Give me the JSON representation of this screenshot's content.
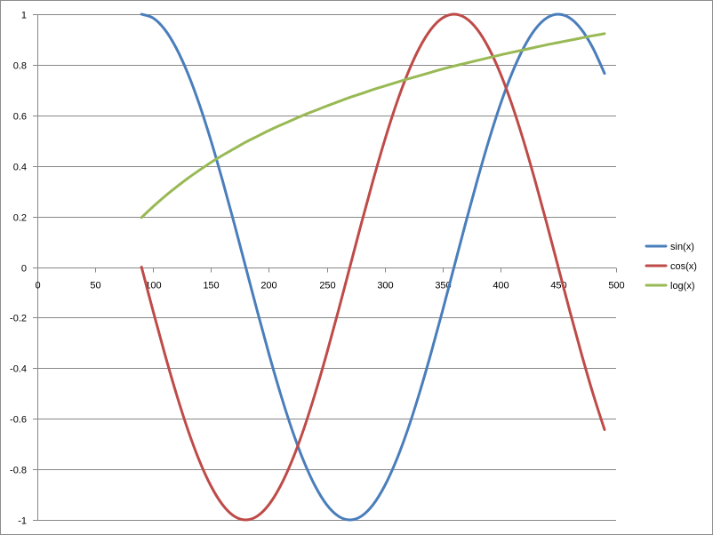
{
  "chart_data": {
    "type": "line",
    "xlim": [
      0,
      500
    ],
    "ylim": [
      -1,
      1
    ],
    "x_ticks": [
      0,
      50,
      100,
      150,
      200,
      250,
      300,
      350,
      400,
      450,
      500
    ],
    "y_ticks": [
      1,
      0.8,
      0.6,
      0.4,
      0.2,
      0,
      -0.2,
      -0.4,
      -0.6,
      -0.8,
      -1
    ],
    "y_tick_labels": [
      "1",
      "0.8",
      "0.6",
      "0.4",
      "0.2",
      "0",
      "-0.2",
      "-0.4",
      "-0.6",
      "-0.8",
      "-1"
    ],
    "x_tick_labels": [
      "0",
      "50",
      "100",
      "150",
      "200",
      "250",
      "300",
      "350",
      "400",
      "450",
      "500"
    ],
    "grid": "horizontal",
    "legend_position": "right",
    "series": [
      {
        "name": "sin(x)",
        "color": "#4a7ebb",
        "x": [
          90,
          100,
          110,
          120,
          130,
          140,
          150,
          160,
          170,
          180,
          190,
          200,
          210,
          220,
          230,
          240,
          250,
          260,
          270,
          280,
          290,
          300,
          310,
          320,
          330,
          340,
          350,
          360,
          370,
          380,
          390,
          400,
          410,
          420,
          430,
          440,
          450,
          460,
          470,
          480,
          490
        ],
        "y": [
          1,
          0.985,
          0.94,
          0.866,
          0.766,
          0.643,
          0.5,
          0.342,
          0.174,
          0,
          -0.174,
          -0.342,
          -0.5,
          -0.643,
          -0.766,
          -0.866,
          -0.94,
          -0.985,
          -1,
          -0.985,
          -0.94,
          -0.866,
          -0.766,
          -0.643,
          -0.5,
          -0.342,
          -0.174,
          0,
          0.174,
          0.342,
          0.5,
          0.643,
          0.766,
          0.866,
          0.94,
          0.985,
          1,
          0.985,
          0.94,
          0.866,
          0.766
        ]
      },
      {
        "name": "cos(x)",
        "color": "#be4b48",
        "x": [
          90,
          100,
          110,
          120,
          130,
          140,
          150,
          160,
          170,
          180,
          190,
          200,
          210,
          220,
          230,
          240,
          250,
          260,
          270,
          280,
          290,
          300,
          310,
          320,
          330,
          340,
          350,
          360,
          370,
          380,
          390,
          400,
          410,
          420,
          430,
          440,
          450,
          460,
          470,
          480,
          490
        ],
        "y": [
          0,
          -0.174,
          -0.342,
          -0.5,
          -0.643,
          -0.766,
          -0.866,
          -0.94,
          -0.985,
          -1,
          -0.985,
          -0.94,
          -0.866,
          -0.766,
          -0.643,
          -0.5,
          -0.342,
          -0.174,
          0,
          0.174,
          0.342,
          0.5,
          0.643,
          0.766,
          0.866,
          0.94,
          0.985,
          1,
          0.985,
          0.94,
          0.866,
          0.766,
          0.643,
          0.5,
          0.342,
          0.174,
          0,
          -0.174,
          -0.342,
          -0.5,
          -0.643
        ]
      },
      {
        "name": "log(x)",
        "color": "#98b954",
        "x": [
          90,
          100,
          110,
          120,
          130,
          140,
          150,
          160,
          170,
          180,
          190,
          200,
          210,
          220,
          230,
          240,
          250,
          260,
          270,
          280,
          290,
          300,
          310,
          320,
          330,
          340,
          350,
          360,
          370,
          380,
          390,
          400,
          410,
          420,
          430,
          440,
          450,
          460,
          470,
          480,
          490
        ],
        "y": [
          0.196,
          0.239,
          0.279,
          0.316,
          0.351,
          0.383,
          0.414,
          0.442,
          0.468,
          0.494,
          0.517,
          0.54,
          0.561,
          0.581,
          0.601,
          0.619,
          0.637,
          0.654,
          0.671,
          0.686,
          0.702,
          0.716,
          0.73,
          0.744,
          0.757,
          0.77,
          0.783,
          0.795,
          0.806,
          0.817,
          0.828,
          0.839,
          0.849,
          0.859,
          0.869,
          0.879,
          0.888,
          0.897,
          0.906,
          0.915,
          0.923
        ]
      }
    ]
  }
}
